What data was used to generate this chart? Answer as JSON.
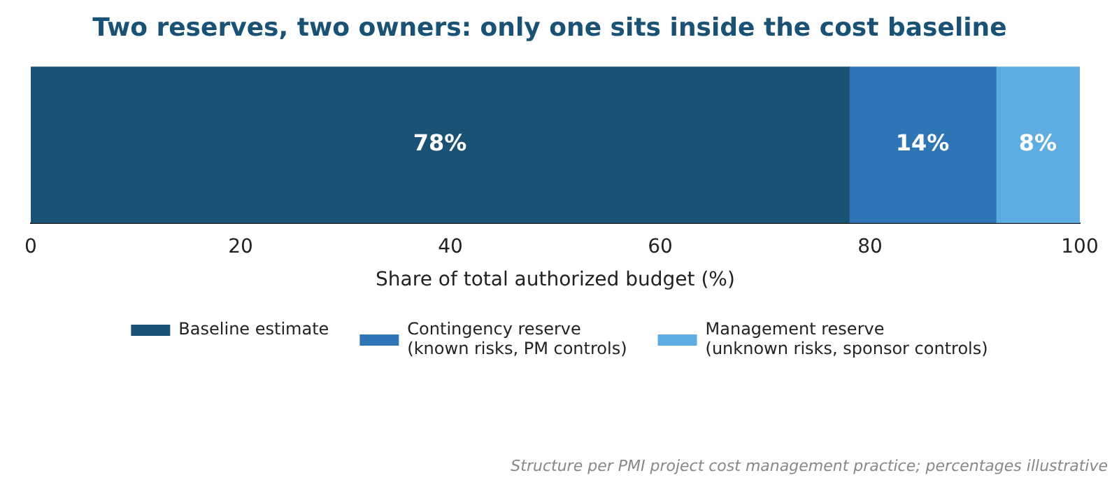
{
  "chart_data": {
    "type": "bar",
    "orientation": "horizontal",
    "stacked": true,
    "title": "Two reserves, two owners: only one sits inside the cost baseline",
    "xlabel": "Share of total authorized budget (%)",
    "categories": [
      null
    ],
    "series": [
      {
        "name": "Baseline estimate",
        "color": "#1a5276",
        "values": [
          78
        ],
        "value_labels": [
          "78%"
        ]
      },
      {
        "name": "Contingency reserve\n(known risks, PM controls)",
        "color": "#2e75b6",
        "values": [
          14
        ],
        "value_labels": [
          "14%"
        ]
      },
      {
        "name": "Management reserve\n(unknown risks, sponsor controls)",
        "color": "#5dade2",
        "values": [
          8
        ],
        "value_labels": [
          "8%"
        ]
      }
    ],
    "xlim": [
      0,
      100
    ],
    "xticks": [
      0,
      20,
      40,
      60,
      80,
      100
    ],
    "tick_labels": "x",
    "legend": "bottom",
    "annotations": [
      "Structure per PMI project cost management practice; percentages illustrative"
    ]
  }
}
